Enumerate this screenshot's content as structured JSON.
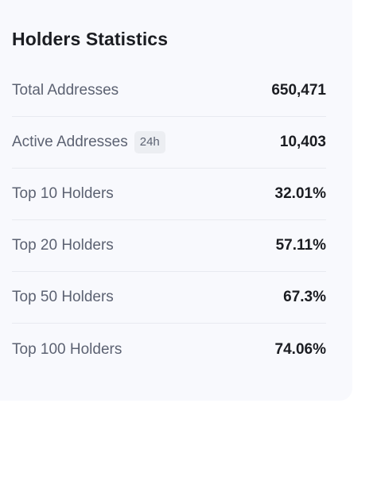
{
  "card": {
    "title": "Holders Statistics"
  },
  "stats": [
    {
      "label": "Total Addresses",
      "value": "650,471"
    },
    {
      "label": "Active Addresses",
      "badge": "24h",
      "value": "10,403"
    },
    {
      "label": "Top 10 Holders",
      "value": "32.01%"
    },
    {
      "label": "Top 20 Holders",
      "value": "57.11%"
    },
    {
      "label": "Top 50 Holders",
      "value": "67.3%"
    },
    {
      "label": "Top 100 Holders",
      "value": "74.06%"
    }
  ]
}
